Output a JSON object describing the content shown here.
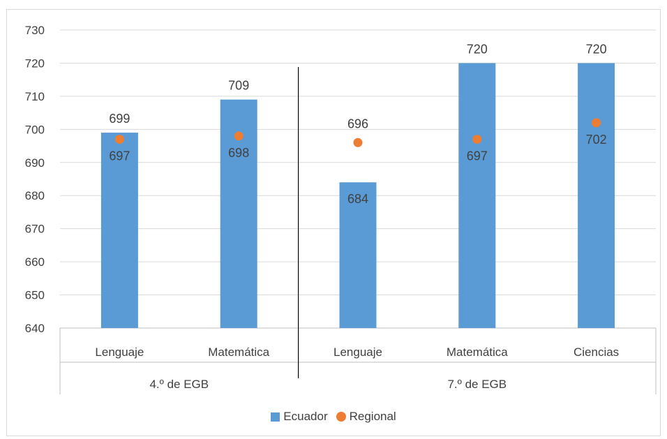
{
  "chart_data": {
    "type": "bar",
    "title": "",
    "xlabel": "",
    "ylabel": "",
    "ylim": [
      640,
      730
    ],
    "yticks": [
      640,
      650,
      660,
      670,
      680,
      690,
      700,
      710,
      720,
      730
    ],
    "grid": true,
    "legend_position": "bottom",
    "groups": [
      {
        "label": "4.º de EGB",
        "categories": [
          "Lenguaje",
          "Matemática"
        ]
      },
      {
        "label": "7.º de EGB",
        "categories": [
          "Lenguaje",
          "Matemática",
          "Ciencias"
        ]
      }
    ],
    "categories": [
      "Lenguaje",
      "Matemática",
      "Lenguaje",
      "Matemática",
      "Ciencias"
    ],
    "series": [
      {
        "name": "Ecuador",
        "kind": "bar",
        "color": "#5b9bd5",
        "values": [
          699,
          709,
          684,
          720,
          720
        ]
      },
      {
        "name": "Regional",
        "kind": "marker",
        "color": "#ed7d31",
        "values": [
          697,
          698,
          696,
          697,
          702
        ]
      }
    ]
  }
}
